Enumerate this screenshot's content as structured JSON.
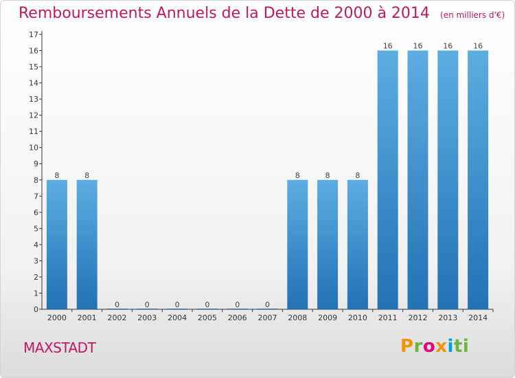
{
  "title": "Remboursements Annuels de la Dette de 2000 à 2014",
  "unit": "(en milliers d'€)",
  "commune": "MAXSTADT",
  "logo": [
    "P",
    "r",
    "o",
    "x",
    "i",
    "ti"
  ],
  "colors": {
    "title": "#c2185b",
    "bar_top": "#5dade2",
    "bar_bottom": "#2272b5",
    "axis": "#333333"
  },
  "chart_data": {
    "type": "bar",
    "categories": [
      "2000",
      "2001",
      "2002",
      "2003",
      "2004",
      "2005",
      "2006",
      "2007",
      "2008",
      "2009",
      "2010",
      "2011",
      "2012",
      "2013",
      "2014"
    ],
    "values": [
      8,
      8,
      0,
      0,
      0,
      0,
      0,
      0,
      8,
      8,
      8,
      16,
      16,
      16,
      16
    ],
    "data_labels": [
      "8",
      "8",
      "0",
      "0",
      "0",
      "0",
      "0",
      "0",
      "8",
      "8",
      "8",
      "16",
      "16",
      "16",
      "16"
    ],
    "y_ticks": [
      "0",
      "1",
      "2",
      "3",
      "4",
      "5",
      "6",
      "7",
      "8",
      "9",
      "10",
      "11",
      "12",
      "13",
      "14",
      "15",
      "16",
      "17"
    ],
    "ylim": [
      0,
      17
    ],
    "grid": false,
    "legend": "none"
  }
}
